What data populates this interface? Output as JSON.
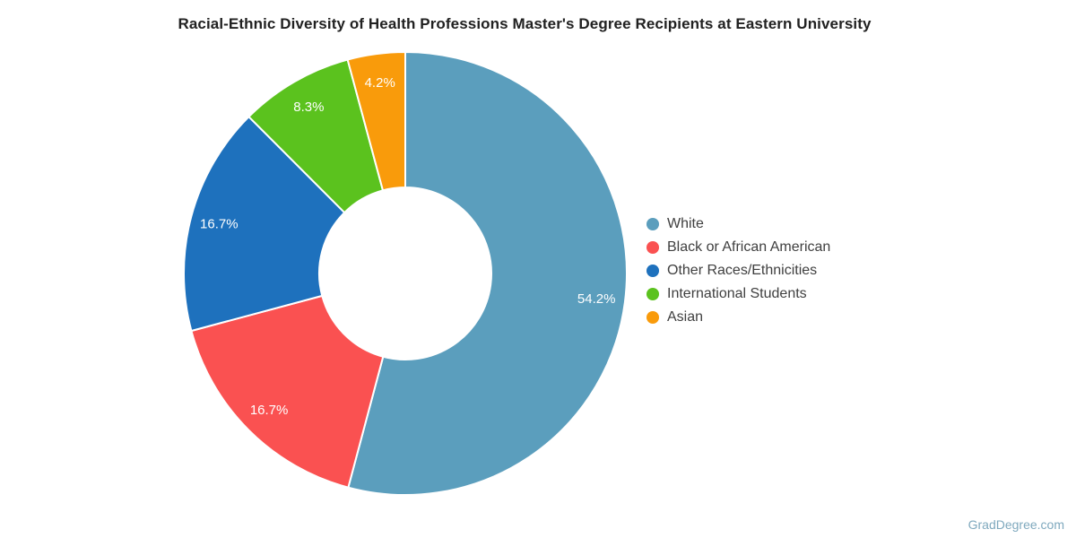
{
  "title": "Racial-Ethnic Diversity of Health Professions Master's Degree Recipients at Eastern University",
  "footer": {
    "watermark": "GradDegree.com"
  },
  "chart_data": {
    "type": "pie",
    "subtype": "donut",
    "title": "Racial-Ethnic Diversity of Health Professions Master's Degree Recipients at Eastern University",
    "categories": [
      "White",
      "Black or African American",
      "Other Races/Ethnicities",
      "International Students",
      "Asian"
    ],
    "values": [
      54.2,
      16.7,
      16.7,
      8.3,
      4.2
    ],
    "labels": [
      "54.2%",
      "16.7%",
      "16.7%",
      "8.3%",
      "4.2%"
    ],
    "colors": [
      "#5B9EBD",
      "#FA5151",
      "#1E71BD",
      "#5BC21E",
      "#F99B0B"
    ],
    "label_color": "#FFFFFF",
    "legend_position": "right",
    "start_angle_deg": 0,
    "direction": "clockwise",
    "inner_radius_ratio": 0.39
  }
}
